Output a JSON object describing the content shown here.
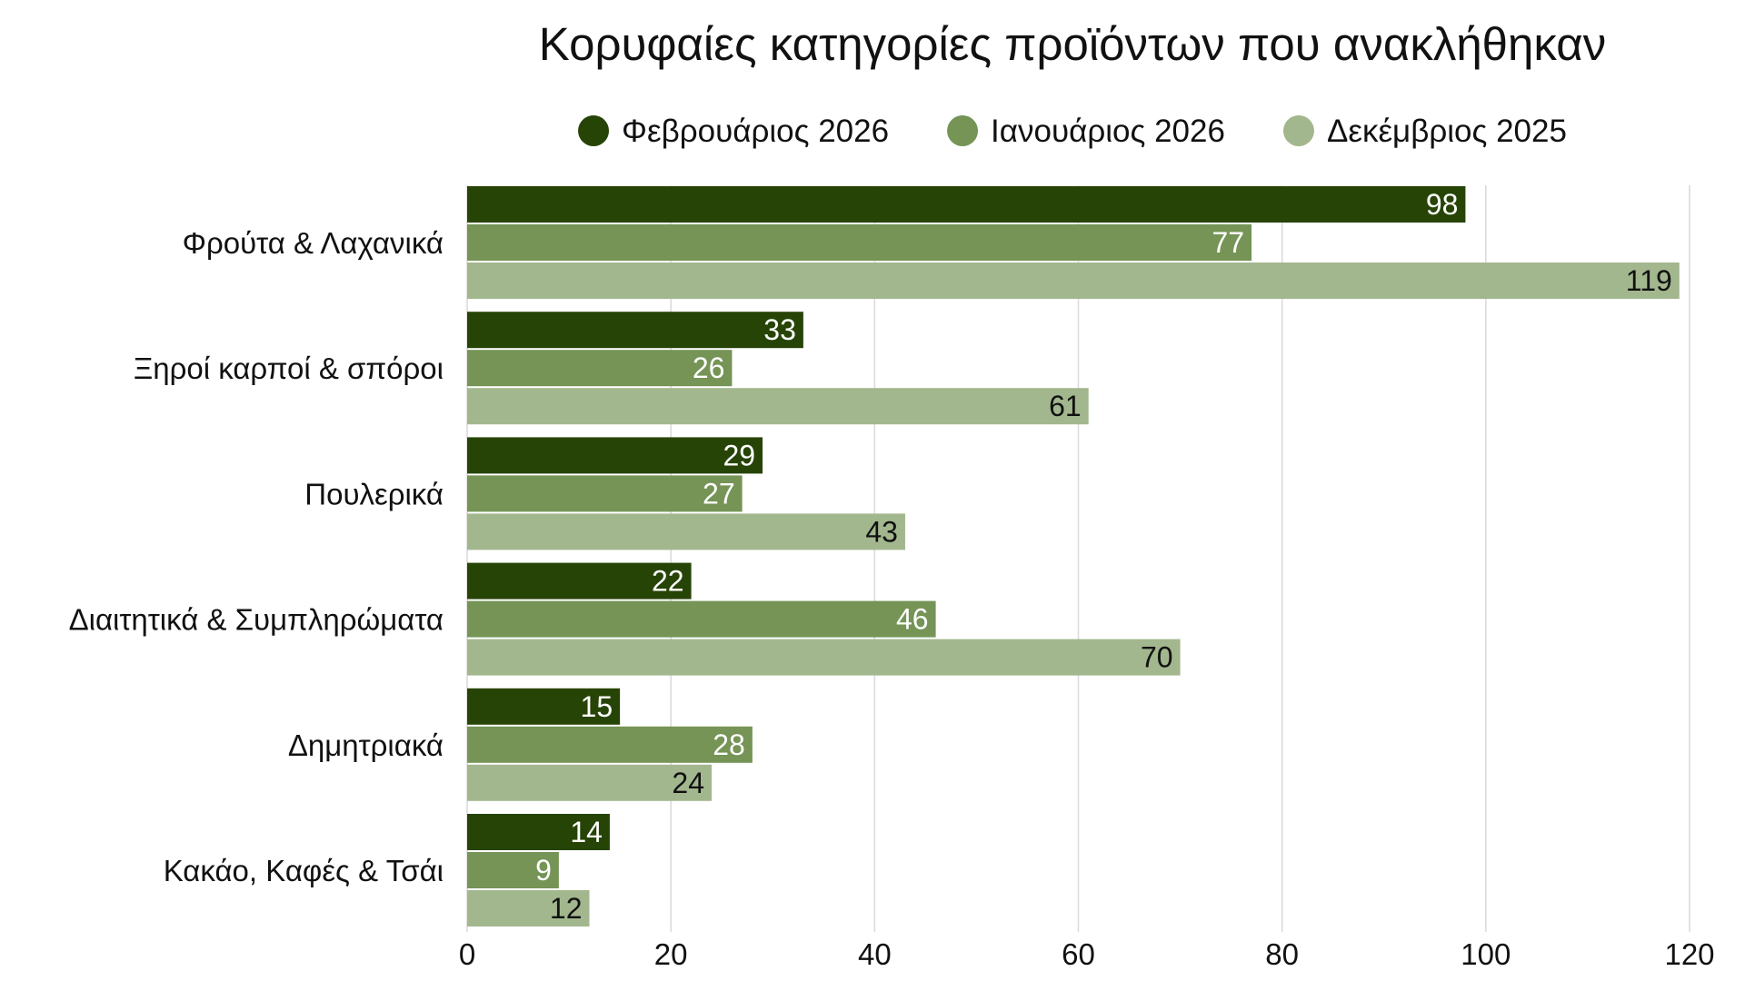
{
  "chart_data": {
    "type": "bar",
    "orientation": "horizontal",
    "title": "Κορυφαίες κατηγορίες προϊόντων που ανακλήθηκαν",
    "xlabel": "",
    "ylabel": "",
    "categories": [
      "Φρούτα & Λαχανικά",
      "Ξηροί καρποί & σπόροι",
      "Πουλερικά",
      "Διαιτητικά & Συμπληρώματα",
      "Δημητριακά",
      "Κακάο, Καφές & Τσάι"
    ],
    "series": [
      {
        "name": "Φεβρουάριος 2026",
        "color": "#274407",
        "label_color": "#ffffff",
        "values": [
          98,
          33,
          29,
          22,
          15,
          14
        ]
      },
      {
        "name": "Ιανουάριος 2026",
        "color": "#759456",
        "label_color": "#ffffff",
        "values": [
          77,
          26,
          27,
          46,
          28,
          9
        ]
      },
      {
        "name": "Δεκέμβριος 2025",
        "color": "#a3b78e",
        "label_color": "#111111",
        "values": [
          119,
          61,
          43,
          70,
          24,
          12
        ]
      }
    ],
    "xlim": [
      0,
      120
    ],
    "xticks": [
      0,
      20,
      40,
      60,
      80,
      100,
      120
    ],
    "grid": true,
    "legend_position": "top",
    "data_labels": true
  }
}
